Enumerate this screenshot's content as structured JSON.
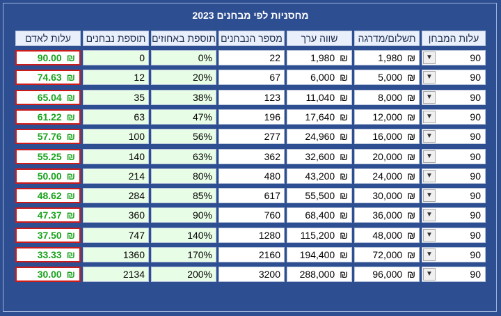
{
  "title": "מחסניות לפי מבחנים 2023",
  "currency": "₪",
  "headers": {
    "test_cost": "עלות המבחן",
    "payment_per_level": "תשלום/מדרגה",
    "value_worth": "שווה ערך",
    "num_tested": "מספר הנבחנים",
    "percent_bonus": "תוספת באחוזים",
    "tested_bonus": "תוספת נבחנים",
    "cost_per_person": "עלות לאדם"
  },
  "rows": [
    {
      "test_cost": "90",
      "payment": "1,980",
      "value": "1,980",
      "tested": "22",
      "percent": "0%",
      "bonus": "0",
      "per_person": "90.00"
    },
    {
      "test_cost": "90",
      "payment": "5,000",
      "value": "6,000",
      "tested": "67",
      "percent": "20%",
      "bonus": "12",
      "per_person": "74.63"
    },
    {
      "test_cost": "90",
      "payment": "8,000",
      "value": "11,040",
      "tested": "123",
      "percent": "38%",
      "bonus": "35",
      "per_person": "65.04"
    },
    {
      "test_cost": "90",
      "payment": "12,000",
      "value": "17,640",
      "tested": "196",
      "percent": "47%",
      "bonus": "63",
      "per_person": "61.22"
    },
    {
      "test_cost": "90",
      "payment": "16,000",
      "value": "24,960",
      "tested": "277",
      "percent": "56%",
      "bonus": "100",
      "per_person": "57.76"
    },
    {
      "test_cost": "90",
      "payment": "20,000",
      "value": "32,600",
      "tested": "362",
      "percent": "63%",
      "bonus": "140",
      "per_person": "55.25"
    },
    {
      "test_cost": "90",
      "payment": "24,000",
      "value": "43,200",
      "tested": "480",
      "percent": "80%",
      "bonus": "214",
      "per_person": "50.00"
    },
    {
      "test_cost": "90",
      "payment": "30,000",
      "value": "55,500",
      "tested": "617",
      "percent": "85%",
      "bonus": "284",
      "per_person": "48.62"
    },
    {
      "test_cost": "90",
      "payment": "36,000",
      "value": "68,400",
      "tested": "760",
      "percent": "90%",
      "bonus": "360",
      "per_person": "47.37"
    },
    {
      "test_cost": "90",
      "payment": "48,000",
      "value": "115,200",
      "tested": "1280",
      "percent": "140%",
      "bonus": "747",
      "per_person": "37.50"
    },
    {
      "test_cost": "90",
      "payment": "72,000",
      "value": "194,400",
      "tested": "2160",
      "percent": "170%",
      "bonus": "1360",
      "per_person": "33.33"
    },
    {
      "test_cost": "90",
      "payment": "96,000",
      "value": "288,000",
      "tested": "3200",
      "percent": "200%",
      "bonus": "2134",
      "per_person": "30.00"
    }
  ]
}
